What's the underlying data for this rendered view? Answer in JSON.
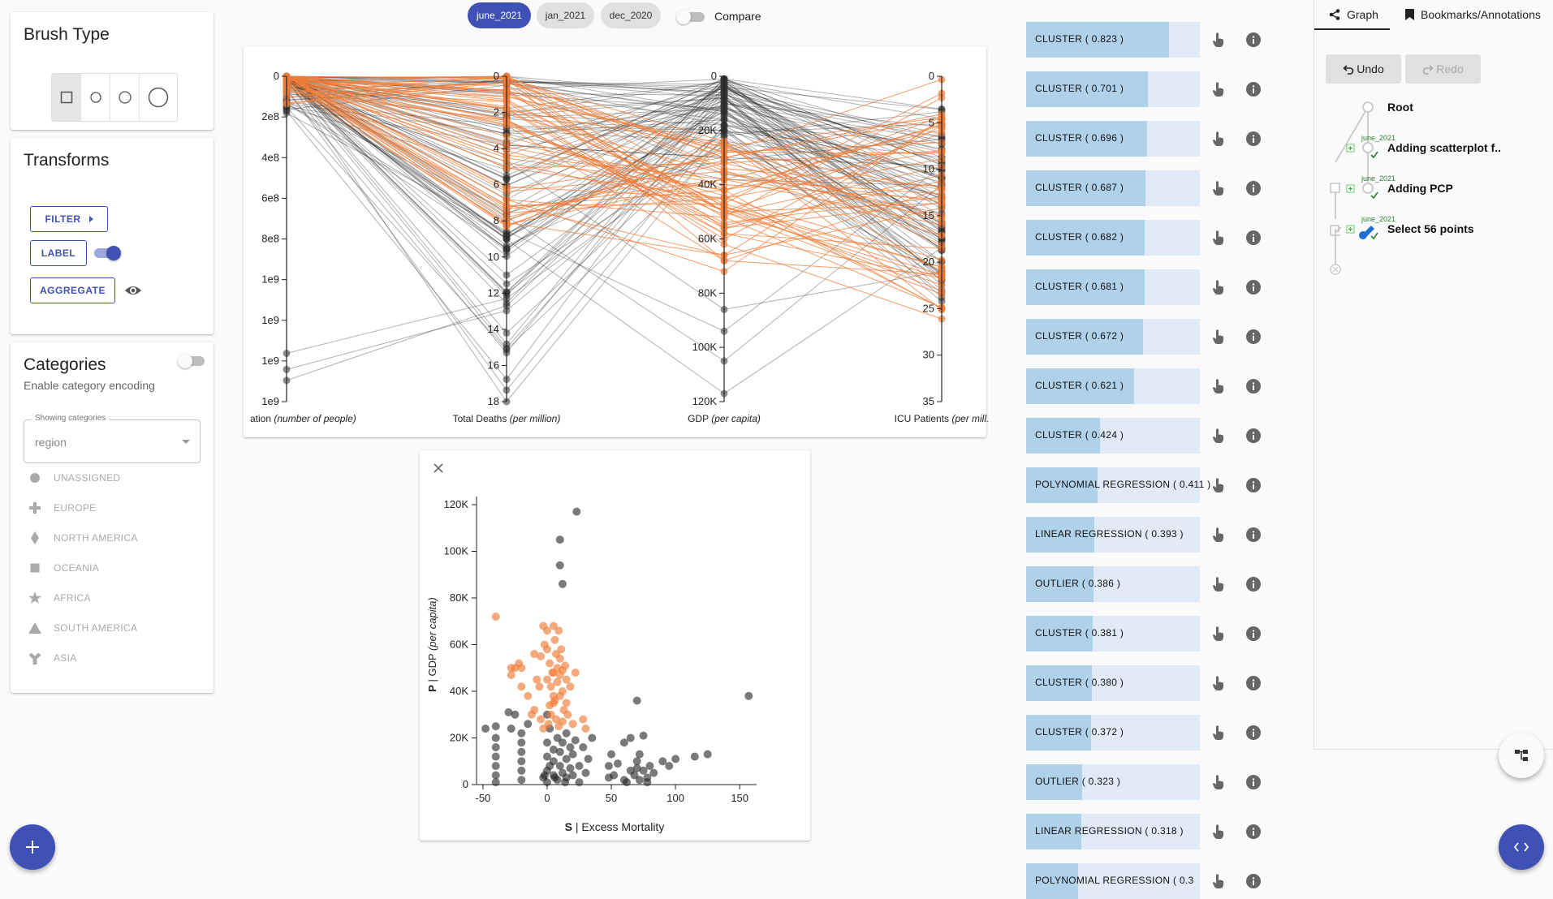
{
  "brush": {
    "title": "Brush Type"
  },
  "transforms": {
    "title": "Transforms",
    "filter_label": "FILTER",
    "label_label": "LABEL",
    "aggregate_label": "AGGREGATE"
  },
  "categories": {
    "title": "Categories",
    "subtitle": "Enable category encoding",
    "select_legend": "Showing categories",
    "select_value": "region",
    "items": [
      {
        "label": "UNASSIGNED",
        "icon": "circle-icon"
      },
      {
        "label": "EUROPE",
        "icon": "cross-icon"
      },
      {
        "label": "NORTH AMERICA",
        "icon": "diamond-icon"
      },
      {
        "label": "OCEANIA",
        "icon": "square-icon"
      },
      {
        "label": "AFRICA",
        "icon": "star-icon"
      },
      {
        "label": "SOUTH AMERICA",
        "icon": "triangle-icon"
      },
      {
        "label": "ASIA",
        "icon": "wye-icon"
      }
    ]
  },
  "datasets": {
    "chips": [
      {
        "label": "june_2021",
        "active": true
      },
      {
        "label": "jan_2021",
        "active": false
      },
      {
        "label": "dec_2020",
        "active": false
      }
    ],
    "compare_label": "Compare"
  },
  "pcp": {
    "axes": [
      {
        "label_main": "ation ",
        "label_unit": "(number of people)",
        "ticks": [
          "0",
          "2e8",
          "4e8",
          "6e8",
          "8e8",
          "1e9",
          "1e9",
          "1e9",
          "1e9"
        ]
      },
      {
        "label_main": "Total Deaths ",
        "label_unit": "(per million)",
        "ticks": [
          "0",
          "2",
          "4",
          "6",
          "8",
          "10",
          "12",
          "14",
          "16",
          "18"
        ]
      },
      {
        "label_main": "GDP ",
        "label_unit": "(per capita)",
        "ticks": [
          "0",
          "20K",
          "40K",
          "60K",
          "80K",
          "100K",
          "120K"
        ]
      },
      {
        "label_main": "ICU Patients ",
        "label_unit": "(per mill.",
        "ticks": [
          "0",
          "5",
          "10",
          "15",
          "20",
          "25",
          "30",
          "35"
        ]
      }
    ],
    "colors": {
      "selected": "#f07c37",
      "unselected": "#222222"
    }
  },
  "scatter": {
    "xlabel_bold": "S",
    "xlabel": " | Excess Mortality",
    "ylabel_bold": "P",
    "ylabel": " | GDP ",
    "ylabel_unit": "(per capita)",
    "xticks": [
      "-50",
      "0",
      "50",
      "100",
      "150"
    ],
    "yticks": [
      "0",
      "20K",
      "40K",
      "60K",
      "80K",
      "100K",
      "120K"
    ]
  },
  "chart_data": {
    "type": "scatter",
    "xlabel": "S | Excess Mortality",
    "ylabel": "P | GDP (per capita)",
    "xlim": [
      -55,
      160
    ],
    "ylim": [
      0,
      120000
    ],
    "series": [
      {
        "name": "selected",
        "color": "#f07c37",
        "points": [
          [
            -40,
            72000
          ],
          [
            -28,
            50000
          ],
          [
            -28,
            47000
          ],
          [
            -22,
            52000
          ],
          [
            -20,
            50000
          ],
          [
            -20,
            42000
          ],
          [
            -15,
            38000
          ],
          [
            -12,
            30000
          ],
          [
            -10,
            56000
          ],
          [
            -8,
            45000
          ],
          [
            -5,
            55000
          ],
          [
            -3,
            68000
          ],
          [
            -2,
            60000
          ],
          [
            0,
            66000
          ],
          [
            0,
            58000
          ],
          [
            0,
            45000
          ],
          [
            2,
            52000
          ],
          [
            3,
            42000
          ],
          [
            5,
            68000
          ],
          [
            5,
            48000
          ],
          [
            5,
            38000
          ],
          [
            5,
            35000
          ],
          [
            6,
            62000
          ],
          [
            7,
            56000
          ],
          [
            8,
            50000
          ],
          [
            8,
            44000
          ],
          [
            9,
            66000
          ],
          [
            10,
            54000
          ],
          [
            10,
            47000
          ],
          [
            10,
            38000
          ],
          [
            12,
            49000
          ],
          [
            12,
            40000
          ],
          [
            13,
            32000
          ],
          [
            14,
            51000
          ],
          [
            15,
            45000
          ],
          [
            15,
            35000
          ],
          [
            16,
            30000
          ],
          [
            18,
            42000
          ],
          [
            20,
            26000
          ],
          [
            22,
            48000
          ],
          [
            28,
            28000
          ],
          [
            30,
            24000
          ],
          [
            -10,
            32000
          ],
          [
            -5,
            28000
          ],
          [
            2,
            34000
          ],
          [
            3,
            30000
          ],
          [
            11,
            58000
          ],
          [
            4,
            48000
          ],
          [
            -6,
            42000
          ],
          [
            6,
            36000
          ],
          [
            1,
            26000
          ],
          [
            -3,
            24000
          ],
          [
            7,
            28000
          ],
          [
            9,
            25000
          ],
          [
            12,
            27000
          ],
          [
            -25,
            50000
          ]
        ]
      },
      {
        "name": "unselected",
        "color": "#222222",
        "points": [
          [
            -48,
            24000
          ],
          [
            -40,
            4000
          ],
          [
            -40,
            8000
          ],
          [
            -40,
            12000
          ],
          [
            -40,
            16000
          ],
          [
            -40,
            20000
          ],
          [
            -40,
            25000
          ],
          [
            -40,
            1000
          ],
          [
            -30,
            31000
          ],
          [
            -28,
            24000
          ],
          [
            -25,
            30000
          ],
          [
            -20,
            22000
          ],
          [
            -20,
            2000
          ],
          [
            -20,
            6000
          ],
          [
            -20,
            10000
          ],
          [
            -20,
            14000
          ],
          [
            -20,
            18000
          ],
          [
            -15,
            26000
          ],
          [
            -3,
            3000
          ],
          [
            0,
            1000
          ],
          [
            0,
            6000
          ],
          [
            0,
            12000
          ],
          [
            0,
            18000
          ],
          [
            2,
            24000
          ],
          [
            5,
            4000
          ],
          [
            5,
            10000
          ],
          [
            5,
            15000
          ],
          [
            8,
            2000
          ],
          [
            8,
            20000
          ],
          [
            10,
            8000
          ],
          [
            10,
            14000
          ],
          [
            12,
            5000
          ],
          [
            12,
            18000
          ],
          [
            15,
            3000
          ],
          [
            15,
            11000
          ],
          [
            15,
            22000
          ],
          [
            18,
            7000
          ],
          [
            18,
            16000
          ],
          [
            20,
            4000
          ],
          [
            20,
            13000
          ],
          [
            22,
            19000
          ],
          [
            25,
            8000
          ],
          [
            25,
            1000
          ],
          [
            28,
            16000
          ],
          [
            30,
            5000
          ],
          [
            32,
            11000
          ],
          [
            35,
            20000
          ],
          [
            48,
            3000
          ],
          [
            48,
            8000
          ],
          [
            50,
            13000
          ],
          [
            52,
            4000
          ],
          [
            55,
            9000
          ],
          [
            60,
            18000
          ],
          [
            62,
            1000
          ],
          [
            65,
            20000
          ],
          [
            68,
            4000
          ],
          [
            70,
            7000
          ],
          [
            70,
            10000
          ],
          [
            72,
            2000
          ],
          [
            72,
            13000
          ],
          [
            75,
            6000
          ],
          [
            75,
            21000
          ],
          [
            78,
            3000
          ],
          [
            80,
            8000
          ],
          [
            83,
            5000
          ],
          [
            90,
            10000
          ],
          [
            95,
            8000
          ],
          [
            100,
            11000
          ],
          [
            115,
            12000
          ],
          [
            125,
            13000
          ],
          [
            157,
            38000
          ],
          [
            70,
            36000
          ],
          [
            10,
            94000
          ],
          [
            10,
            105000
          ],
          [
            12,
            86000
          ],
          [
            23,
            117000
          ],
          [
            0,
            30000
          ],
          [
            60,
            2000
          ],
          [
            65,
            6000
          ],
          [
            78,
            1000
          ],
          [
            2,
            8000
          ],
          [
            -2,
            4000
          ],
          [
            6,
            3000
          ],
          [
            14,
            1000
          ]
        ]
      }
    ]
  },
  "recommendations": [
    {
      "label": "CLUSTER ( 0.823 )",
      "value": 0.823
    },
    {
      "label": "CLUSTER ( 0.701 )",
      "value": 0.701
    },
    {
      "label": "CLUSTER ( 0.696 )",
      "value": 0.696
    },
    {
      "label": "CLUSTER ( 0.687 )",
      "value": 0.687
    },
    {
      "label": "CLUSTER ( 0.682 )",
      "value": 0.682
    },
    {
      "label": "CLUSTER ( 0.681 )",
      "value": 0.681
    },
    {
      "label": "CLUSTER ( 0.672 )",
      "value": 0.672
    },
    {
      "label": "CLUSTER ( 0.621 )",
      "value": 0.621
    },
    {
      "label": "CLUSTER ( 0.424 )",
      "value": 0.424
    },
    {
      "label": "POLYNOMIAL REGRESSION ( 0.411 )",
      "value": 0.411
    },
    {
      "label": "LINEAR REGRESSION ( 0.393 )",
      "value": 0.393
    },
    {
      "label": "OUTLIER ( 0.386 )",
      "value": 0.386
    },
    {
      "label": "CLUSTER ( 0.381 )",
      "value": 0.381
    },
    {
      "label": "CLUSTER ( 0.380 )",
      "value": 0.38
    },
    {
      "label": "CLUSTER ( 0.372 )",
      "value": 0.372
    },
    {
      "label": "OUTLIER ( 0.323 )",
      "value": 0.323
    },
    {
      "label": "LINEAR REGRESSION ( 0.318 )",
      "value": 0.318
    },
    {
      "label": "POLYNOMIAL REGRESSION ( 0.3",
      "value": 0.3
    }
  ],
  "history": {
    "tabs": [
      {
        "label": "Graph",
        "active": true
      },
      {
        "label": "Bookmarks/Annotations",
        "active": false
      }
    ],
    "undo_label": "Undo",
    "redo_label": "Redo",
    "nodes": [
      {
        "label": "Root",
        "tag": ""
      },
      {
        "label": "Adding scatterplot f..",
        "tag": "june_2021"
      },
      {
        "label": "Adding PCP",
        "tag": "june_2021"
      },
      {
        "label": "Select 56 points",
        "tag": "june_2021"
      }
    ]
  }
}
